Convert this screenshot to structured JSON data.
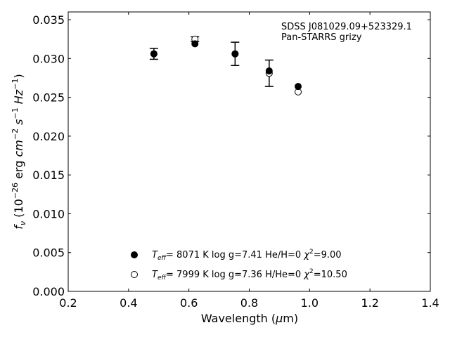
{
  "chart_data": {
    "type": "scatter",
    "xlabel_prefix": "Wavelength (",
    "xlabel_unit_greek": "μ",
    "xlabel_unit_rest": "m)",
    "ylabel": {
      "f": "f",
      "nu": "ν",
      "open": " (10",
      "exp_neg26": "−26",
      "erg": " erg ",
      "cm": "cm",
      "exp_neg2": "−2",
      "s": " s",
      "exp_neg1a": "−1",
      "hz": " Hz",
      "exp_neg1b": "−1",
      "close": ")"
    },
    "xlim": [
      0.2,
      1.4
    ],
    "ylim": [
      0.0,
      0.036
    ],
    "xticks": [
      "0.2",
      "0.4",
      "0.6",
      "0.8",
      "1.0",
      "1.2",
      "1.4"
    ],
    "yticks": [
      "0.000",
      "0.005",
      "0.010",
      "0.015",
      "0.020",
      "0.025",
      "0.030",
      "0.035"
    ],
    "grid": false,
    "annotation": [
      "SDSS J081029.09+523329.1",
      "Pan-STARRS grizy"
    ],
    "observed": {
      "x": [
        0.484,
        0.62,
        0.753,
        0.866,
        0.962
      ],
      "y": [
        0.0306,
        0.0325,
        0.0306,
        0.0281,
        0.0257
      ],
      "err": [
        0.0007,
        0.0003,
        0.0015,
        0.0017,
        0.0
      ]
    },
    "series": [
      {
        "marker": "filled",
        "x": [
          0.484,
          0.62,
          0.753,
          0.866,
          0.962
        ],
        "y": [
          0.0306,
          0.0319,
          0.0306,
          0.0284,
          0.0264
        ],
        "legend": {
          "T": "T",
          "sub": "eff",
          "text": "=  8071 K  log g=7.41  He/H=0  ",
          "chi": "χ",
          "sup": "2",
          "rest": "=9.00"
        }
      },
      {
        "marker": "open",
        "x": [
          0.484,
          0.62,
          0.753,
          0.866,
          0.962
        ],
        "y": [
          0.0306,
          0.0325,
          0.0306,
          0.0281,
          0.0257
        ],
        "legend": {
          "T": "T",
          "sub": "eff",
          "text": "=  7999 K  log g=7.36  H/He=0  ",
          "chi": "χ",
          "sup": "2",
          "rest": "=10.50"
        }
      }
    ]
  }
}
